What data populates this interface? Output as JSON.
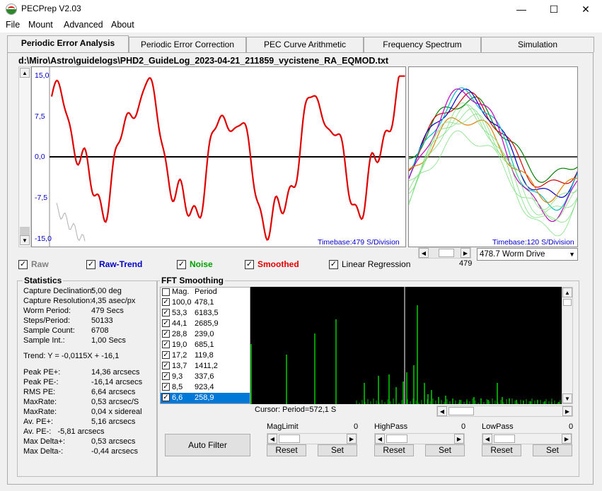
{
  "window": {
    "title": "PECPrep V2.03",
    "minimize": "—",
    "maximize": "☐",
    "close": "✕"
  },
  "menu": [
    "File",
    "Mount",
    "Advanced",
    "About"
  ],
  "tabs": [
    {
      "label": "Periodic Error Analysis",
      "active": true
    },
    {
      "label": "Periodic Error Correction",
      "active": false
    },
    {
      "label": "PEC Curve Arithmetic",
      "active": false
    },
    {
      "label": "Frequency Spectrum",
      "active": false
    },
    {
      "label": "Simulation",
      "active": false
    }
  ],
  "file_path": "d:\\Miro\\Astro\\guidelogs\\PHD2_GuideLog_2023-04-21_211859_vycistene_RA_EQMOD.txt",
  "main_plot": {
    "y_ticks": [
      "15,0",
      "7,5",
      "0,0",
      "-7,5",
      "-15,0"
    ],
    "timebase": "Timebase:479 S/Division",
    "colors": {
      "smoothed": "#e00000",
      "raw": "#b0b0b0",
      "zero": "#000000"
    }
  },
  "worm_plot": {
    "timebase": "Timebase:120 S/Division",
    "slider_value": "479",
    "dropdown_value": "478.7 Worm Drive",
    "colors": {
      "dark_green": "#008000",
      "red": "#d00000",
      "blue": "#0000c0",
      "cyan": "#00c0c0",
      "magenta": "#c000c0",
      "orange": "#e08000",
      "light_green": "#80e080"
    }
  },
  "checkboxes": [
    {
      "label": "Raw",
      "checked": true,
      "color": "#808080"
    },
    {
      "label": "Raw-Trend",
      "checked": true,
      "color": "#0000c0"
    },
    {
      "label": "Noise",
      "checked": true,
      "color": "#00a000"
    },
    {
      "label": "Smoothed",
      "checked": true,
      "color": "#e00000"
    },
    {
      "label": "Linear Regression",
      "checked": true,
      "color": "#000000"
    }
  ],
  "statistics": {
    "title": "Statistics",
    "rows": [
      {
        "label": "Capture Declination:",
        "value": "5,00 deg"
      },
      {
        "label": "Capture Resolution:",
        "value": "4,35 asec/px"
      },
      {
        "label": "Worm Period:",
        "value": "479 Secs"
      },
      {
        "label": "Steps/Period:",
        "value": "50133"
      },
      {
        "label": "Sample Count:",
        "value": "6708"
      },
      {
        "label": "Sample Int.:",
        "value": "1,00 Secs"
      }
    ],
    "trend": "Trend: Y = -0,0115X + -16,1",
    "rows2": [
      {
        "label": "Peak PE+:",
        "value": "14,36 arcsecs"
      },
      {
        "label": "Peak PE-:",
        "value": "-16,14 arcsecs"
      },
      {
        "label": "RMS PE:",
        "value": "6,64 arcsecs"
      },
      {
        "label": "MaxRate:",
        "value": "0,53 arcsec/S"
      },
      {
        "label": "MaxRate:",
        "value": "0,04 x sidereal"
      },
      {
        "label": "Av. PE+:",
        "value": "5,16 arcsecs"
      }
    ],
    "av_pe_minus": "Av. PE-:   -5,81 arcsecs",
    "rows3": [
      {
        "label": "Max Delta+:",
        "value": "0,53 arcsecs"
      },
      {
        "label": "Max Delta-:",
        "value": "-0,44 arcsecs"
      }
    ]
  },
  "fft": {
    "title": "FFT Smoothing",
    "header": {
      "mag": "Mag.",
      "period": "Period"
    },
    "rows": [
      {
        "mag": "100,0",
        "period": "478,1",
        "checked": true
      },
      {
        "mag": "53,3",
        "period": "6183,5",
        "checked": true
      },
      {
        "mag": "44,1",
        "period": "2685,9",
        "checked": true
      },
      {
        "mag": "28,8",
        "period": "239,0",
        "checked": true
      },
      {
        "mag": "19,0",
        "period": "685,1",
        "checked": true
      },
      {
        "mag": "17,2",
        "period": "119,8",
        "checked": true
      },
      {
        "mag": "13,7",
        "period": "1411,2",
        "checked": true
      },
      {
        "mag": "9,3",
        "period": "337,6",
        "checked": true
      },
      {
        "mag": "8,5",
        "period": "923,4",
        "checked": true
      },
      {
        "mag": "6,6",
        "period": "258,9",
        "checked": true,
        "selected": true
      }
    ],
    "cursor": "Cursor: Period=572,1 S",
    "auto_filter": "Auto Filter",
    "controls": [
      {
        "name": "MagLimit",
        "value": "0",
        "reset": "Reset",
        "set": "Set"
      },
      {
        "name": "HighPass",
        "value": "0",
        "reset": "Reset",
        "set": "Set"
      },
      {
        "name": "LowPass",
        "value": "0",
        "reset": "Reset",
        "set": "Set"
      }
    ]
  }
}
